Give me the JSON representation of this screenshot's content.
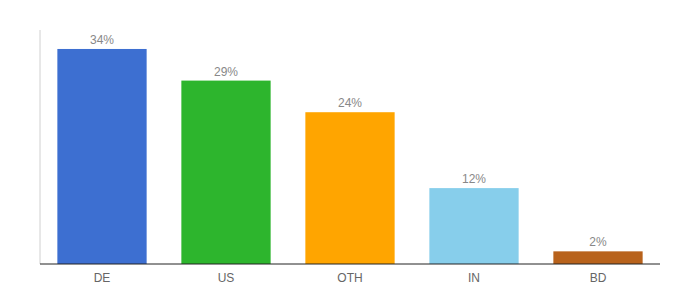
{
  "chart_data": {
    "type": "bar",
    "categories": [
      "DE",
      "US",
      "OTH",
      "IN",
      "BD"
    ],
    "values": [
      34,
      29,
      24,
      12,
      2
    ],
    "colors": [
      "#3d6fd1",
      "#2db52d",
      "#ffa500",
      "#87ceeb",
      "#b8621b"
    ],
    "ylim": [
      0,
      37
    ],
    "data_labels": true,
    "value_labels": [
      "34%",
      "29%",
      "24%",
      "12%",
      "2%"
    ],
    "tick_labels": "x",
    "grid": false
  }
}
